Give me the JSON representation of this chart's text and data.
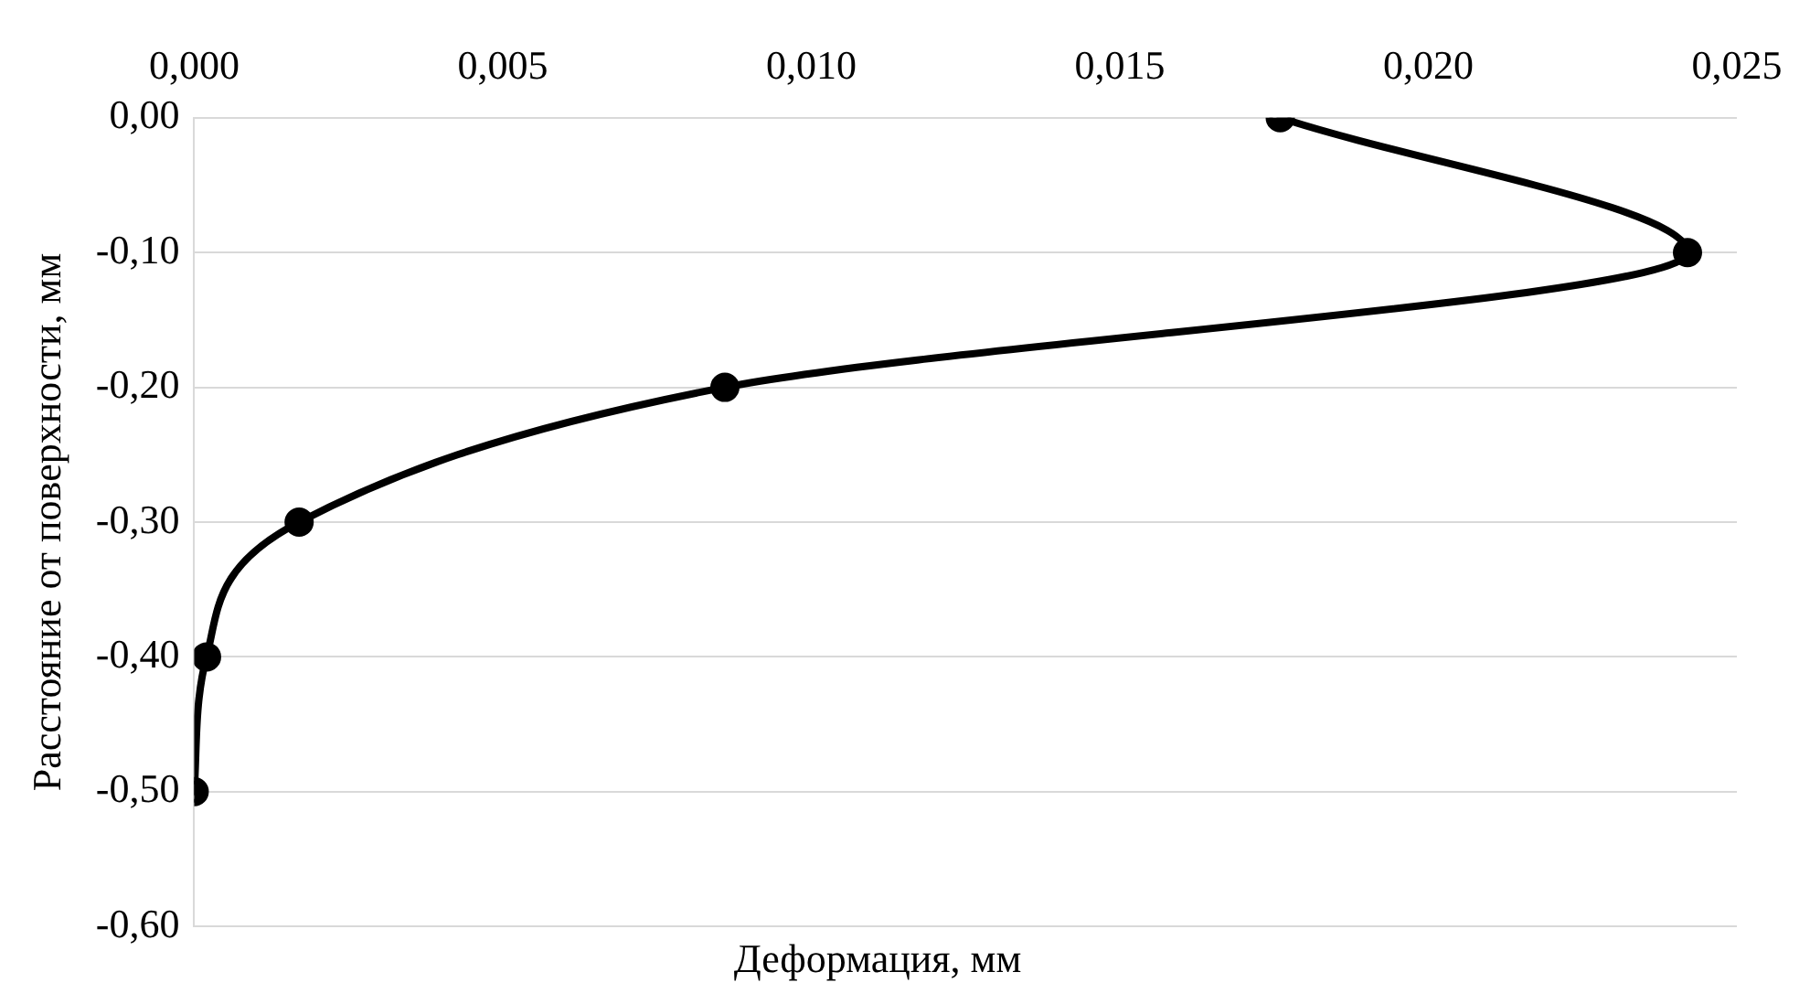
{
  "chart_data": {
    "type": "line",
    "xlabel": "Деформация, мм",
    "ylabel": "Расстояние от поверхности, мм",
    "x": [
      0.0176,
      0.0242,
      0.0086,
      0.0017,
      0.0002,
      0.0
    ],
    "series": [
      {
        "color": "#000000",
        "values": [
          0.0,
          -0.1,
          -0.2,
          -0.3,
          -0.4,
          -0.5
        ]
      }
    ],
    "xlim": [
      0,
      0.025
    ],
    "xticks": [
      {
        "value": 0,
        "label": "0,000"
      },
      {
        "value": 0.005,
        "label": "0,005"
      },
      {
        "value": 0.01,
        "label": "0,010"
      },
      {
        "value": 0.015,
        "label": "0,015"
      },
      {
        "value": 0.02,
        "label": "0,020"
      },
      {
        "value": 0.025,
        "label": "0,025"
      }
    ],
    "ylim": [
      -0.6,
      0
    ],
    "yticks": [
      {
        "value": 0,
        "label": "0,00"
      },
      {
        "value": -0.1,
        "label": "-0,10"
      },
      {
        "value": -0.2,
        "label": "-0,20"
      },
      {
        "value": -0.3,
        "label": "-0,30"
      },
      {
        "value": -0.4,
        "label": "-0,40"
      },
      {
        "value": -0.5,
        "label": "-0,50"
      },
      {
        "value": -0.6,
        "label": "-0,60"
      }
    ],
    "grid": "y",
    "legend": false,
    "marker": "circle",
    "line_style": "solid"
  }
}
